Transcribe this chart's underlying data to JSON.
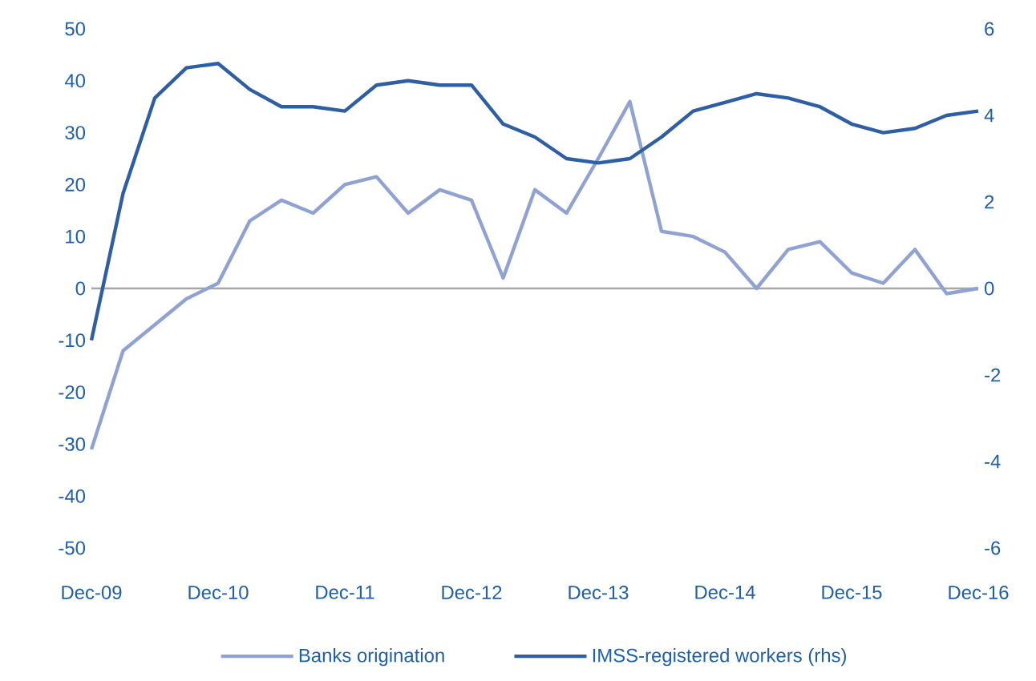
{
  "chart_data": {
    "type": "line",
    "x": [
      "2009-12",
      "2010-03",
      "2010-06",
      "2010-09",
      "2010-12",
      "2011-03",
      "2011-06",
      "2011-09",
      "2011-12",
      "2012-03",
      "2012-06",
      "2012-09",
      "2012-12",
      "2013-03",
      "2013-06",
      "2013-09",
      "2013-12",
      "2014-03",
      "2014-06",
      "2014-09",
      "2014-12",
      "2015-03",
      "2015-06",
      "2015-09",
      "2015-12",
      "2016-03",
      "2016-06",
      "2016-09",
      "2016-12"
    ],
    "series": [
      {
        "name": "Banks origination",
        "color": "#8fa2d1",
        "values": [
          -31,
          -12,
          -7,
          -2,
          1,
          13,
          17,
          14.5,
          20,
          21.5,
          14.5,
          19,
          17,
          2,
          19,
          14.5,
          25,
          36,
          11,
          10,
          7,
          0,
          7.5,
          9,
          3,
          1,
          7.5,
          -1,
          0
        ]
      },
      {
        "name": "IMSS-registered workers (rhs)",
        "color": "#2e5ea3",
        "axis": "y2",
        "values": [
          -1.2,
          2.2,
          4.4,
          5.1,
          5.2,
          4.6,
          4.2,
          4.2,
          4.1,
          4.7,
          4.8,
          4.7,
          4.7,
          3.8,
          3.5,
          3.0,
          2.9,
          3.0,
          3.5,
          4.1,
          4.3,
          4.5,
          4.4,
          4.2,
          3.8,
          3.6,
          3.7,
          4.0,
          4.1
        ]
      }
    ],
    "xlim": [
      "2009-12",
      "2016-12"
    ],
    "xticks": [
      {
        "value": "2009-12",
        "label": "Dec-09"
      },
      {
        "value": "2010-12",
        "label": "Dec-10"
      },
      {
        "value": "2011-12",
        "label": "Dec-11"
      },
      {
        "value": "2012-12",
        "label": "Dec-12"
      },
      {
        "value": "2013-12",
        "label": "Dec-13"
      },
      {
        "value": "2014-12",
        "label": "Dec-14"
      },
      {
        "value": "2015-12",
        "label": "Dec-15"
      },
      {
        "value": "2016-12",
        "label": "Dec-16"
      }
    ],
    "ylim": [
      -50,
      50
    ],
    "yticks": [
      -50,
      -40,
      -30,
      -20,
      -10,
      0,
      10,
      20,
      30,
      40,
      50
    ],
    "y2lim": [
      -6,
      6
    ],
    "y2ticks": [
      -6,
      -4,
      -2,
      0,
      2,
      4,
      6
    ],
    "ref_lines": [
      {
        "axis": "y",
        "value": 0,
        "color": "#a6a6a6"
      }
    ],
    "legend": "bottom"
  }
}
